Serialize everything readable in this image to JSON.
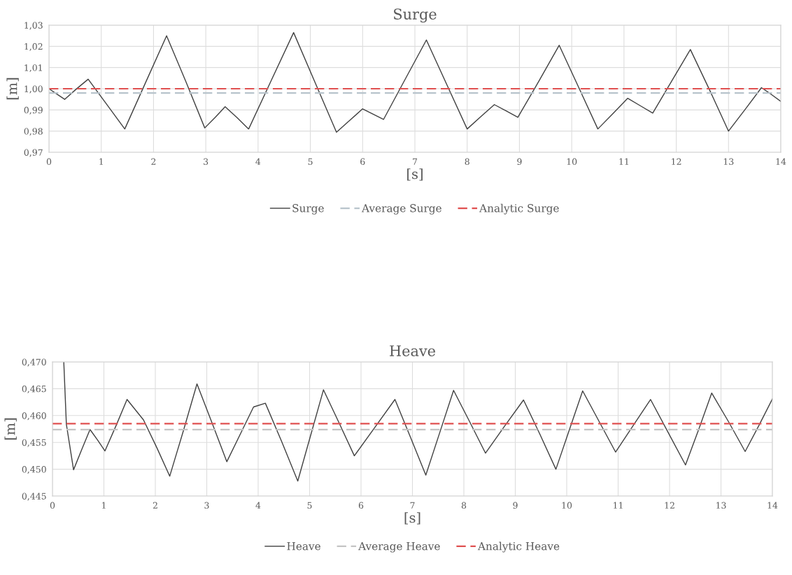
{
  "chart_data": [
    {
      "type": "line",
      "title": "Surge",
      "xlabel": "[s]",
      "ylabel": "[m]",
      "xlim": [
        0,
        14
      ],
      "xticks": [
        0,
        1,
        2,
        3,
        4,
        5,
        6,
        7,
        8,
        9,
        10,
        11,
        12,
        13,
        14
      ],
      "ylim": [
        0.97,
        1.03
      ],
      "yticks": [
        {
          "value": 0.97,
          "label": "0,97"
        },
        {
          "value": 0.98,
          "label": "0,98"
        },
        {
          "value": 0.99,
          "label": "0,99"
        },
        {
          "value": 1.0,
          "label": "1,00"
        },
        {
          "value": 1.01,
          "label": "1,01"
        },
        {
          "value": 1.02,
          "label": "1,02"
        },
        {
          "value": 1.03,
          "label": "1,03"
        }
      ],
      "grid": true,
      "legend": "bottom",
      "marker": "none",
      "series": [
        {
          "name": "Surge",
          "color": "#404040",
          "line_style": "solid",
          "x": [
            0,
            0.15,
            0.3,
            0.52,
            0.75,
            1.1,
            1.45,
            1.85,
            2.25,
            2.62,
            2.98,
            3.18,
            3.37,
            3.6,
            3.82,
            4.25,
            4.68,
            5.09,
            5.5,
            5.75,
            6.0,
            6.2,
            6.4,
            6.81,
            7.22,
            7.61,
            8.0,
            8.26,
            8.52,
            8.75,
            8.97,
            9.37,
            9.76,
            10.13,
            10.5,
            10.79,
            11.07,
            11.31,
            11.55,
            11.91,
            12.27,
            12.64,
            13.0,
            13.32,
            13.63,
            13.82,
            14
          ],
          "values": [
            1.0,
            0.9975,
            0.995,
            0.9998,
            1.0045,
            0.9928,
            0.981,
            1.003,
            1.025,
            1.0033,
            0.9815,
            0.9865,
            0.9915,
            0.9863,
            0.981,
            1.0038,
            1.0265,
            1.003,
            0.9795,
            0.985,
            0.9905,
            0.988,
            0.9855,
            1.0043,
            1.023,
            1.002,
            0.981,
            0.9868,
            0.9925,
            0.9895,
            0.9865,
            1.0035,
            1.0205,
            1.0008,
            0.981,
            0.9883,
            0.9955,
            0.992,
            0.9885,
            1.0035,
            1.0185,
            0.9993,
            0.98,
            0.9903,
            1.0005,
            0.9973,
            0.994
          ]
        },
        {
          "name": "Average Surge",
          "color": "#b8c4cc",
          "line_style": "dashed",
          "x": [
            0,
            14
          ],
          "values": [
            0.998,
            0.998
          ]
        },
        {
          "name": "Analytic Surge",
          "color": "#e05050",
          "line_style": "dashed",
          "x": [
            0,
            14
          ],
          "values": [
            1.0,
            1.0
          ]
        }
      ]
    },
    {
      "type": "line",
      "title": "Heave",
      "xlabel": "[s]",
      "ylabel": "[m]",
      "xlim": [
        0,
        14
      ],
      "xticks": [
        0,
        1,
        2,
        3,
        4,
        5,
        6,
        7,
        8,
        9,
        10,
        11,
        12,
        13,
        14
      ],
      "ylim": [
        0.445,
        0.47
      ],
      "yticks": [
        {
          "value": 0.445,
          "label": "0,445"
        },
        {
          "value": 0.45,
          "label": "0,450"
        },
        {
          "value": 0.455,
          "label": "0,455"
        },
        {
          "value": 0.46,
          "label": "0,460"
        },
        {
          "value": 0.465,
          "label": "0,465"
        },
        {
          "value": 0.47,
          "label": "0,470"
        }
      ],
      "grid": true,
      "legend": "bottom",
      "marker": "none",
      "series": [
        {
          "name": "Heave",
          "color": "#404040",
          "line_style": "solid",
          "x": [
            0.22,
            0.27,
            0.41,
            0.57,
            0.73,
            0.88,
            1.02,
            1.24,
            1.45,
            1.77,
            2.03,
            2.28,
            2.55,
            2.81,
            3.1,
            3.39,
            3.65,
            3.91,
            4.14,
            4.46,
            4.77,
            5.02,
            5.27,
            5.57,
            5.87,
            6.27,
            6.66,
            6.96,
            7.26,
            7.53,
            7.8,
            8.11,
            8.42,
            8.79,
            9.16,
            9.48,
            9.79,
            10.05,
            10.31,
            10.63,
            10.95,
            11.29,
            11.63,
            11.97,
            12.31,
            12.57,
            12.82,
            13.15,
            13.47,
            13.74,
            14
          ],
          "values": [
            0.47,
            0.4584,
            0.4499,
            0.4537,
            0.4574,
            0.4554,
            0.4534,
            0.4582,
            0.463,
            0.4592,
            0.454,
            0.4487,
            0.4573,
            0.4659,
            0.4587,
            0.4514,
            0.4565,
            0.4616,
            0.4623,
            0.4551,
            0.4478,
            0.4563,
            0.4648,
            0.4587,
            0.4525,
            0.4578,
            0.463,
            0.456,
            0.4489,
            0.4568,
            0.4647,
            0.4589,
            0.453,
            0.458,
            0.4629,
            0.4565,
            0.45,
            0.4573,
            0.4646,
            0.4589,
            0.4532,
            0.4581,
            0.463,
            0.4569,
            0.4508,
            0.4575,
            0.4642,
            0.4588,
            0.4533,
            0.4582,
            0.4631
          ]
        },
        {
          "name": "Average Heave",
          "color": "#c4c4c4",
          "line_style": "dashed",
          "x": [
            0,
            14
          ],
          "values": [
            0.4574,
            0.4574
          ]
        },
        {
          "name": "Analytic Heave",
          "color": "#e05050",
          "line_style": "dashed",
          "x": [
            0,
            14
          ],
          "values": [
            0.4585,
            0.4585
          ]
        }
      ]
    }
  ]
}
